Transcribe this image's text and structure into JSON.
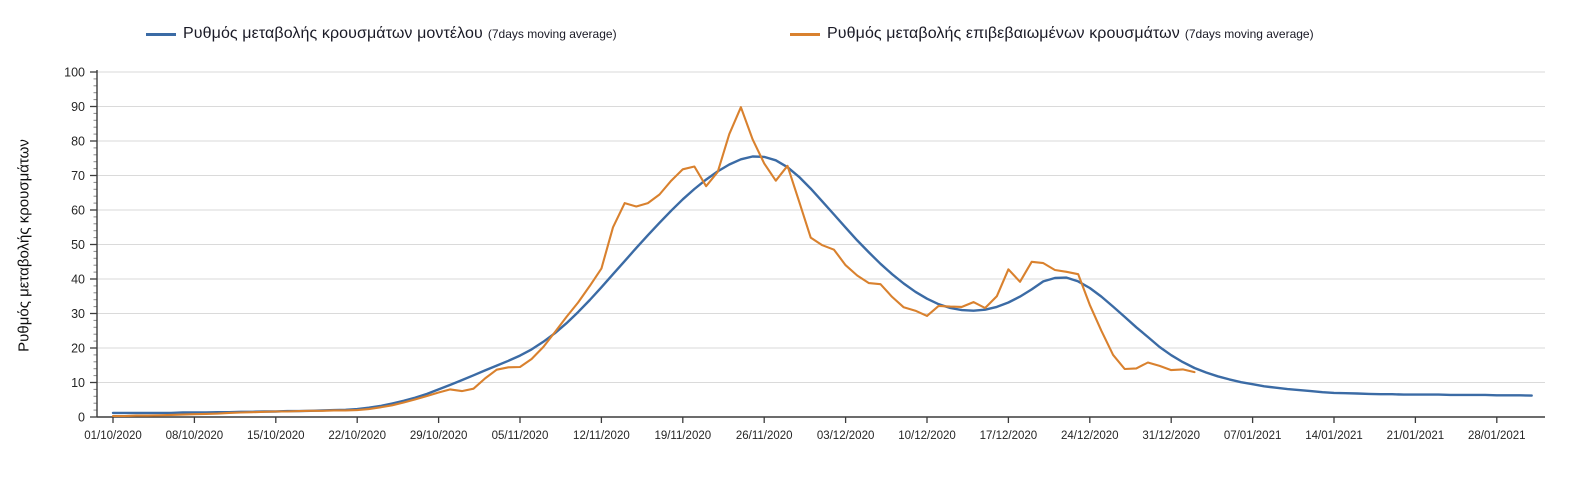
{
  "legend": {
    "items": [
      {
        "label": "Ρυθμός μεταβολής κρουσμάτων μοντέλου",
        "sub": "(7days moving average)"
      },
      {
        "label": "Ρυθμός μεταβολής επιβεβαιωμένων κρουσμάτων",
        "sub": "(7days moving average)"
      }
    ]
  },
  "y_axis": {
    "title": "Ρυθμός μεταβολής κρουσμάτων"
  },
  "chart_data": {
    "type": "line",
    "title": "",
    "xlabel": "",
    "ylabel": "Ρυθμός μεταβολής κρουσμάτων",
    "ylim": [
      0,
      100
    ],
    "y_ticks": [
      0,
      10,
      20,
      30,
      40,
      50,
      60,
      70,
      80,
      90,
      100
    ],
    "y_minor_tick_step": 2,
    "grid": "horizontal",
    "legend_position": "top",
    "x_start_date": "01/10/2020",
    "x_step_days": 1,
    "x_tick_interval_days": 7,
    "x_tick_labels": [
      "01/10/2020",
      "08/10/2020",
      "15/10/2020",
      "22/10/2020",
      "29/10/2020",
      "05/11/2020",
      "12/11/2020",
      "19/11/2020",
      "26/11/2020",
      "03/12/2020",
      "10/12/2020",
      "17/12/2020",
      "24/12/2020",
      "31/12/2020",
      "07/01/2021",
      "14/01/2021",
      "21/01/2021",
      "28/01/2021"
    ],
    "series": [
      {
        "name": "Ρυθμός μεταβολής κρουσμάτων μοντέλου (7days moving average)",
        "color": "#3B6BA5",
        "width": 2.4,
        "start_day": 0,
        "values": [
          1.2,
          1.2,
          1.2,
          1.2,
          1.2,
          1.2,
          1.3,
          1.3,
          1.3,
          1.4,
          1.4,
          1.5,
          1.5,
          1.6,
          1.6,
          1.7,
          1.7,
          1.8,
          1.9,
          2.0,
          2.1,
          2.3,
          2.7,
          3.2,
          3.9,
          4.7,
          5.6,
          6.7,
          8.0,
          9.3,
          10.7,
          12.1,
          13.5,
          14.9,
          16.3,
          17.8,
          19.6,
          21.8,
          24.3,
          27.2,
          30.4,
          33.9,
          37.6,
          41.4,
          45.2,
          49.0,
          52.7,
          56.3,
          59.8,
          63.1,
          66.1,
          68.8,
          71.2,
          73.2,
          74.7,
          75.5,
          75.4,
          74.4,
          72.4,
          69.6,
          66.2,
          62.5,
          58.7,
          54.9,
          51.2,
          47.7,
          44.4,
          41.4,
          38.7,
          36.3,
          34.3,
          32.7,
          31.6,
          31.0,
          30.8,
          31.1,
          31.9,
          33.2,
          34.9,
          37.0,
          39.3,
          40.3,
          40.4,
          39.3,
          37.4,
          34.9,
          32.0,
          29.0,
          26.0,
          23.2,
          20.3,
          17.9,
          15.9,
          14.2,
          12.9,
          11.8,
          10.9,
          10.1,
          9.5,
          8.9,
          8.5,
          8.1,
          7.8,
          7.5,
          7.2,
          7.0,
          6.9,
          6.8,
          6.7,
          6.6,
          6.6,
          6.5,
          6.5,
          6.5,
          6.5,
          6.4,
          6.4,
          6.4,
          6.4,
          6.3,
          6.3,
          6.3,
          6.2
        ]
      },
      {
        "name": "Ρυθμός μεταβολής επιβεβαιωμένων κρουσμάτων (7days moving average)",
        "color": "#D9812E",
        "width": 2.1,
        "start_day": 0,
        "values": [
          0.3,
          0.3,
          0.4,
          0.4,
          0.5,
          0.6,
          0.7,
          0.8,
          0.9,
          1.0,
          1.2,
          1.3,
          1.4,
          1.5,
          1.6,
          1.6,
          1.7,
          1.8,
          1.8,
          1.9,
          1.9,
          2.0,
          2.3,
          2.8,
          3.4,
          4.2,
          5.1,
          6.1,
          7.1,
          8.0,
          7.5,
          8.2,
          11.2,
          13.7,
          14.4,
          14.5,
          16.8,
          20.3,
          24.6,
          29.0,
          33.2,
          38.0,
          43.0,
          55.0,
          62.0,
          61.0,
          62.0,
          64.5,
          68.5,
          71.8,
          72.6,
          66.9,
          71.0,
          82.0,
          89.8,
          80.5,
          73.5,
          68.5,
          72.8,
          62.5,
          52.0,
          49.8,
          48.5,
          44.0,
          41.0,
          38.8,
          38.5,
          34.8,
          31.8,
          30.8,
          29.3,
          32.2,
          32.0,
          31.9,
          33.3,
          31.6,
          35.0,
          42.8,
          39.2,
          45.0,
          44.6,
          42.6,
          42.1,
          41.4,
          32.5,
          25.0,
          18.0,
          13.9,
          14.1,
          15.8,
          14.8,
          13.6,
          13.8,
          13.0
        ]
      }
    ]
  }
}
